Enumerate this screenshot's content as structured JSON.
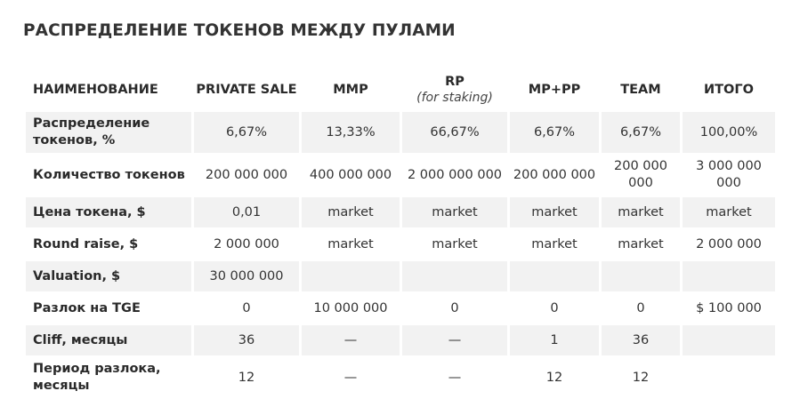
{
  "title": "РАСПРЕДЕЛЕНИЕ ТОКЕНОВ МЕЖДУ ПУЛАМИ",
  "headers": [
    {
      "main": "НАИМЕНОВАНИЕ",
      "sub": ""
    },
    {
      "main": "PRIVATE SALE",
      "sub": ""
    },
    {
      "main": "MMP",
      "sub": ""
    },
    {
      "main": "RP",
      "sub": "(for staking)"
    },
    {
      "main": "MP+PP",
      "sub": ""
    },
    {
      "main": "TEAM",
      "sub": ""
    },
    {
      "main": "ИТОГО",
      "sub": ""
    }
  ],
  "rows": [
    {
      "label": "Распределение токенов, %",
      "shaded": true,
      "cells": [
        "6,67%",
        "13,33%",
        "66,67%",
        "6,67%",
        "6,67%",
        "100,00%"
      ]
    },
    {
      "label": "Количество токенов",
      "shaded": false,
      "cells": [
        "200 000 000",
        "400 000 000",
        "2 000 000 000",
        "200 000 000",
        "200 000 000",
        "3 000 000 000"
      ]
    },
    {
      "label": "Цена токена, $",
      "shaded": true,
      "cells": [
        "0,01",
        "market",
        "market",
        "market",
        "market",
        "market"
      ]
    },
    {
      "label": "Round raise, $",
      "shaded": false,
      "cells": [
        "2 000 000",
        "market",
        "market",
        "market",
        "market",
        "2 000 000"
      ]
    },
    {
      "label": "Valuation, $",
      "shaded": true,
      "cells": [
        "30 000 000",
        "",
        "",
        "",
        "",
        ""
      ]
    },
    {
      "label": "Разлок на TGE",
      "shaded": false,
      "cells": [
        "0",
        "10 000 000",
        "0",
        "0",
        "0",
        "$ 100 000"
      ]
    },
    {
      "label": "Cliff, месяцы",
      "shaded": true,
      "cells": [
        "36",
        "—",
        "—",
        "1",
        "36",
        ""
      ]
    },
    {
      "label": "Период разлока, месяцы",
      "shaded": false,
      "cells": [
        "12",
        "—",
        "—",
        "12",
        "12",
        ""
      ]
    }
  ]
}
